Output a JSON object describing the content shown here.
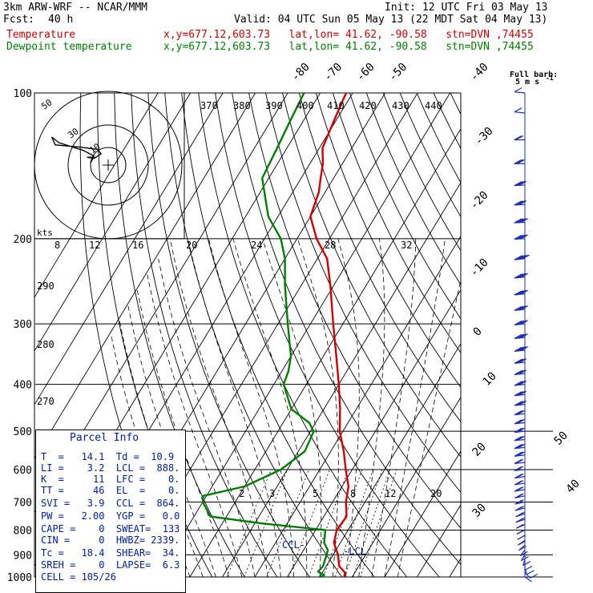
{
  "header": {
    "model": "3km ARW-WRF -- NCAR/MMM",
    "init": "Init: 12 UTC Fri 03 May 13",
    "fcst_label": "Fcst:",
    "fcst_hours": "40 h",
    "valid": "Valid: 04 UTC Sun 05 May 13 (22 MDT Sat 04 May 13)",
    "temp_label": "Temperature",
    "dew_label": "Dewpoint temperature",
    "location": "x,y=677.12,603.73   lat,lon= 41.62, -90.58   stn=DVN ,74455"
  },
  "barb_legend": {
    "title": "Full barb:",
    "value": "5 m s",
    "sup": "-1"
  },
  "hodograph": {
    "units": "kts",
    "ring_labels": [
      "10",
      "30",
      "50"
    ]
  },
  "chart_data": {
    "type": "line",
    "title": "",
    "yaxis": {
      "scale": "log-pressure",
      "units": "hPa",
      "ylim": [
        1000,
        100
      ],
      "ticks": [
        100,
        200,
        300,
        400,
        500,
        600,
        700,
        800,
        900,
        1000
      ]
    },
    "isotherm_labels": [
      -80,
      -70,
      -60,
      -50,
      -40,
      -30,
      -20,
      -10,
      0,
      10,
      20,
      30,
      40,
      50
    ],
    "theta_labels": [
      370,
      380,
      390,
      400,
      410,
      420,
      430,
      440,
      290,
      280,
      270
    ],
    "mixing_ratio_labels_upper": [
      8,
      12,
      16,
      20,
      24,
      28,
      32
    ],
    "mixing_ratio_labels_lower": [
      2,
      3,
      5,
      8,
      12,
      20
    ],
    "series": [
      {
        "name": "Temperature",
        "color": "#d40000",
        "points": [
          [
            1000,
            27.5
          ],
          [
            980,
            27.0
          ],
          [
            950,
            24.0
          ],
          [
            900,
            21.5
          ],
          [
            850,
            18.0
          ],
          [
            800,
            16.5
          ],
          [
            750,
            17.0
          ],
          [
            700,
            14.1
          ],
          [
            650,
            12.0
          ],
          [
            600,
            8.0
          ],
          [
            550,
            4.0
          ],
          [
            500,
            -1.0
          ],
          [
            450,
            -5.0
          ],
          [
            400,
            -10.0
          ],
          [
            350,
            -16.0
          ],
          [
            300,
            -23.0
          ],
          [
            250,
            -31.0
          ],
          [
            220,
            -37.0
          ],
          [
            200,
            -44.0
          ],
          [
            180,
            -50.0
          ],
          [
            160,
            -52.0
          ],
          [
            150,
            -54.0
          ],
          [
            140,
            -56.0
          ],
          [
            130,
            -59.0
          ],
          [
            120,
            -60.0
          ],
          [
            110,
            -61.0
          ],
          [
            100,
            -62.0
          ]
        ]
      },
      {
        "name": "Dewpoint temperature",
        "color": "#008000",
        "points": [
          [
            1000,
            20.5
          ],
          [
            990,
            21.0
          ],
          [
            975,
            18.5
          ],
          [
            950,
            19.0
          ],
          [
            925,
            18.5
          ],
          [
            900,
            18.0
          ],
          [
            880,
            17.5
          ],
          [
            850,
            15.0
          ],
          [
            800,
            13.0
          ],
          [
            775,
            -8.0
          ],
          [
            750,
            -25.0
          ],
          [
            700,
            -30.0
          ],
          [
            680,
            -31.0
          ],
          [
            650,
            -20.0
          ],
          [
            600,
            -12.0
          ],
          [
            550,
            -8.0
          ],
          [
            500,
            -9.0
          ],
          [
            480,
            -12.0
          ],
          [
            450,
            -20.0
          ],
          [
            400,
            -27.0
          ],
          [
            375,
            -28.0
          ],
          [
            350,
            -30.0
          ],
          [
            300,
            -37.0
          ],
          [
            250,
            -45.0
          ],
          [
            220,
            -50.0
          ],
          [
            200,
            -55.0
          ],
          [
            180,
            -63.0
          ],
          [
            150,
            -72.0
          ],
          [
            130,
            -73.0
          ],
          [
            115,
            -74.0
          ],
          [
            100,
            -75.0
          ]
        ]
      }
    ],
    "annotations": [
      "CCL",
      "LCL"
    ],
    "hodograph_trace_kts": [
      [
        -5,
        2
      ],
      [
        -4,
        8
      ],
      [
        -7,
        13
      ],
      [
        -14,
        20
      ],
      [
        -16,
        25
      ],
      [
        -15,
        18
      ],
      [
        -8,
        16
      ],
      [
        -3,
        14
      ],
      [
        -2,
        10
      ],
      [
        -3,
        8
      ],
      [
        -4,
        6
      ],
      [
        -6,
        7
      ],
      [
        -4,
        7
      ]
    ]
  },
  "parcel_info": {
    "title": "Parcel Info",
    "rows": [
      "T  =   14.1  Td =  10.9",
      "LI =    3.2  LCL =  888.",
      "K  =     11  LFC =    0.",
      "TT =     46  EL  =    0.",
      "SVI =   3.9  CCL =  864.",
      "PW =   2.00  YGP =   0.0",
      "CAPE =    0  SWEAT=  133",
      "CIN =     0  HWBZ= 2339.",
      "Tc =   18.4  SHEAR=  34.",
      "SREH =    0  LAPSE=  6.3",
      "CELL = 105/26"
    ]
  },
  "wind_profile_ms": [
    [
      1000,
      140,
      2
    ],
    [
      980,
      150,
      3
    ],
    [
      960,
      170,
      4
    ],
    [
      940,
      180,
      5
    ],
    [
      920,
      190,
      6
    ],
    [
      900,
      200,
      6
    ],
    [
      880,
      205,
      5
    ],
    [
      860,
      215,
      5
    ],
    [
      840,
      220,
      6
    ],
    [
      820,
      225,
      6
    ],
    [
      800,
      230,
      7
    ],
    [
      780,
      235,
      7
    ],
    [
      760,
      240,
      8
    ],
    [
      740,
      240,
      8
    ],
    [
      720,
      245,
      9
    ],
    [
      700,
      250,
      9
    ],
    [
      680,
      250,
      10
    ],
    [
      660,
      255,
      10
    ],
    [
      640,
      255,
      11
    ],
    [
      620,
      255,
      11
    ],
    [
      600,
      260,
      12
    ],
    [
      580,
      260,
      12
    ],
    [
      560,
      260,
      13
    ],
    [
      540,
      260,
      13
    ],
    [
      520,
      260,
      14
    ],
    [
      500,
      260,
      15
    ],
    [
      480,
      260,
      16
    ],
    [
      460,
      260,
      17
    ],
    [
      440,
      260,
      18
    ],
    [
      420,
      260,
      19
    ],
    [
      400,
      260,
      20
    ],
    [
      380,
      260,
      21
    ],
    [
      360,
      260,
      22
    ],
    [
      340,
      260,
      23
    ],
    [
      320,
      260,
      24
    ],
    [
      300,
      260,
      25
    ],
    [
      280,
      260,
      25
    ],
    [
      260,
      260,
      26
    ],
    [
      240,
      260,
      27
    ],
    [
      220,
      260,
      28
    ],
    [
      200,
      265,
      27
    ],
    [
      185,
      265,
      25
    ],
    [
      170,
      265,
      22
    ],
    [
      155,
      265,
      18
    ],
    [
      140,
      270,
      14
    ],
    [
      125,
      270,
      10
    ],
    [
      110,
      280,
      7
    ],
    [
      100,
      280,
      5
    ]
  ]
}
